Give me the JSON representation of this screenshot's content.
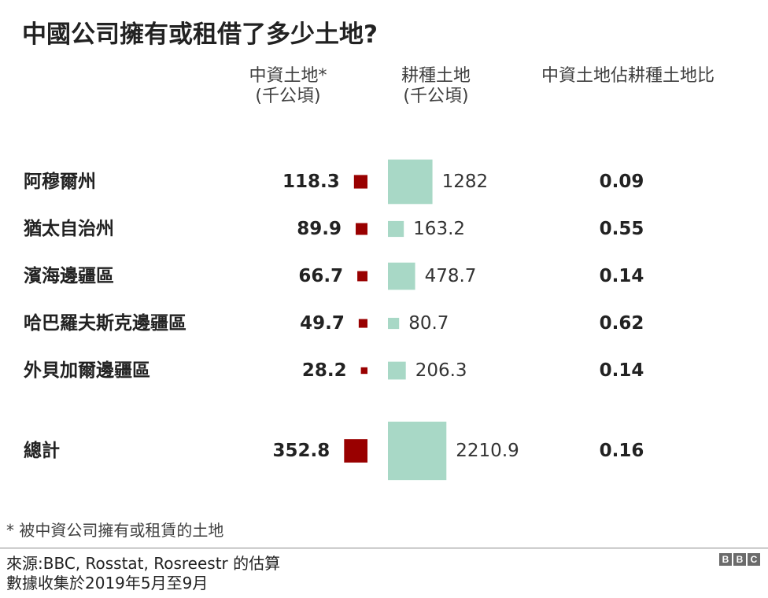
{
  "title": "中國公司擁有或租借了多少土地?",
  "headers": {
    "china_land": "中資土地*",
    "china_land_unit": "(千公頃)",
    "farm_land": "耕種土地",
    "farm_land_unit": "(千公頃)",
    "ratio": "中資土地佔耕種土地比"
  },
  "chart_data": {
    "type": "table",
    "title": "中國公司擁有或租借了多少土地?",
    "columns": [
      "中資土地* (千公頃)",
      "耕種土地 (千公頃)",
      "中資土地佔耕種土地比"
    ],
    "rows": [
      {
        "region": "阿穆爾州",
        "china_land": 118.3,
        "china_label": "118.3",
        "farm_land": 1282,
        "farm_label": "1282",
        "ratio": "0.09"
      },
      {
        "region": "猶太自治州",
        "china_land": 89.9,
        "china_label": "89.9",
        "farm_land": 163.2,
        "farm_label": "163.2",
        "ratio": "0.55"
      },
      {
        "region": "濱海邊疆區",
        "china_land": 66.7,
        "china_label": "66.7",
        "farm_land": 478.7,
        "farm_label": "478.7",
        "ratio": "0.14"
      },
      {
        "region": "哈巴羅夫斯克邊疆區",
        "china_land": 49.7,
        "china_label": "49.7",
        "farm_land": 80.7,
        "farm_label": "80.7",
        "ratio": "0.62"
      },
      {
        "region": "外貝加爾邊疆區",
        "china_land": 28.2,
        "china_label": "28.2",
        "farm_land": 206.3,
        "farm_label": "206.3",
        "ratio": "0.14"
      }
    ],
    "total": {
      "region": "總計",
      "china_land": 352.8,
      "china_label": "352.8",
      "farm_land": 2210.9,
      "farm_label": "2210.9",
      "ratio": "0.16"
    },
    "colors": {
      "china": "#990000",
      "farm": "#a8d8c6"
    }
  },
  "footnote": "* 被中資公司擁有或租賃的土地",
  "source": "來源:BBC, Rosstat, Rosreestr 的估算",
  "collection": "數據收集於2019年5月至9月",
  "logo": [
    "B",
    "B",
    "C"
  ]
}
